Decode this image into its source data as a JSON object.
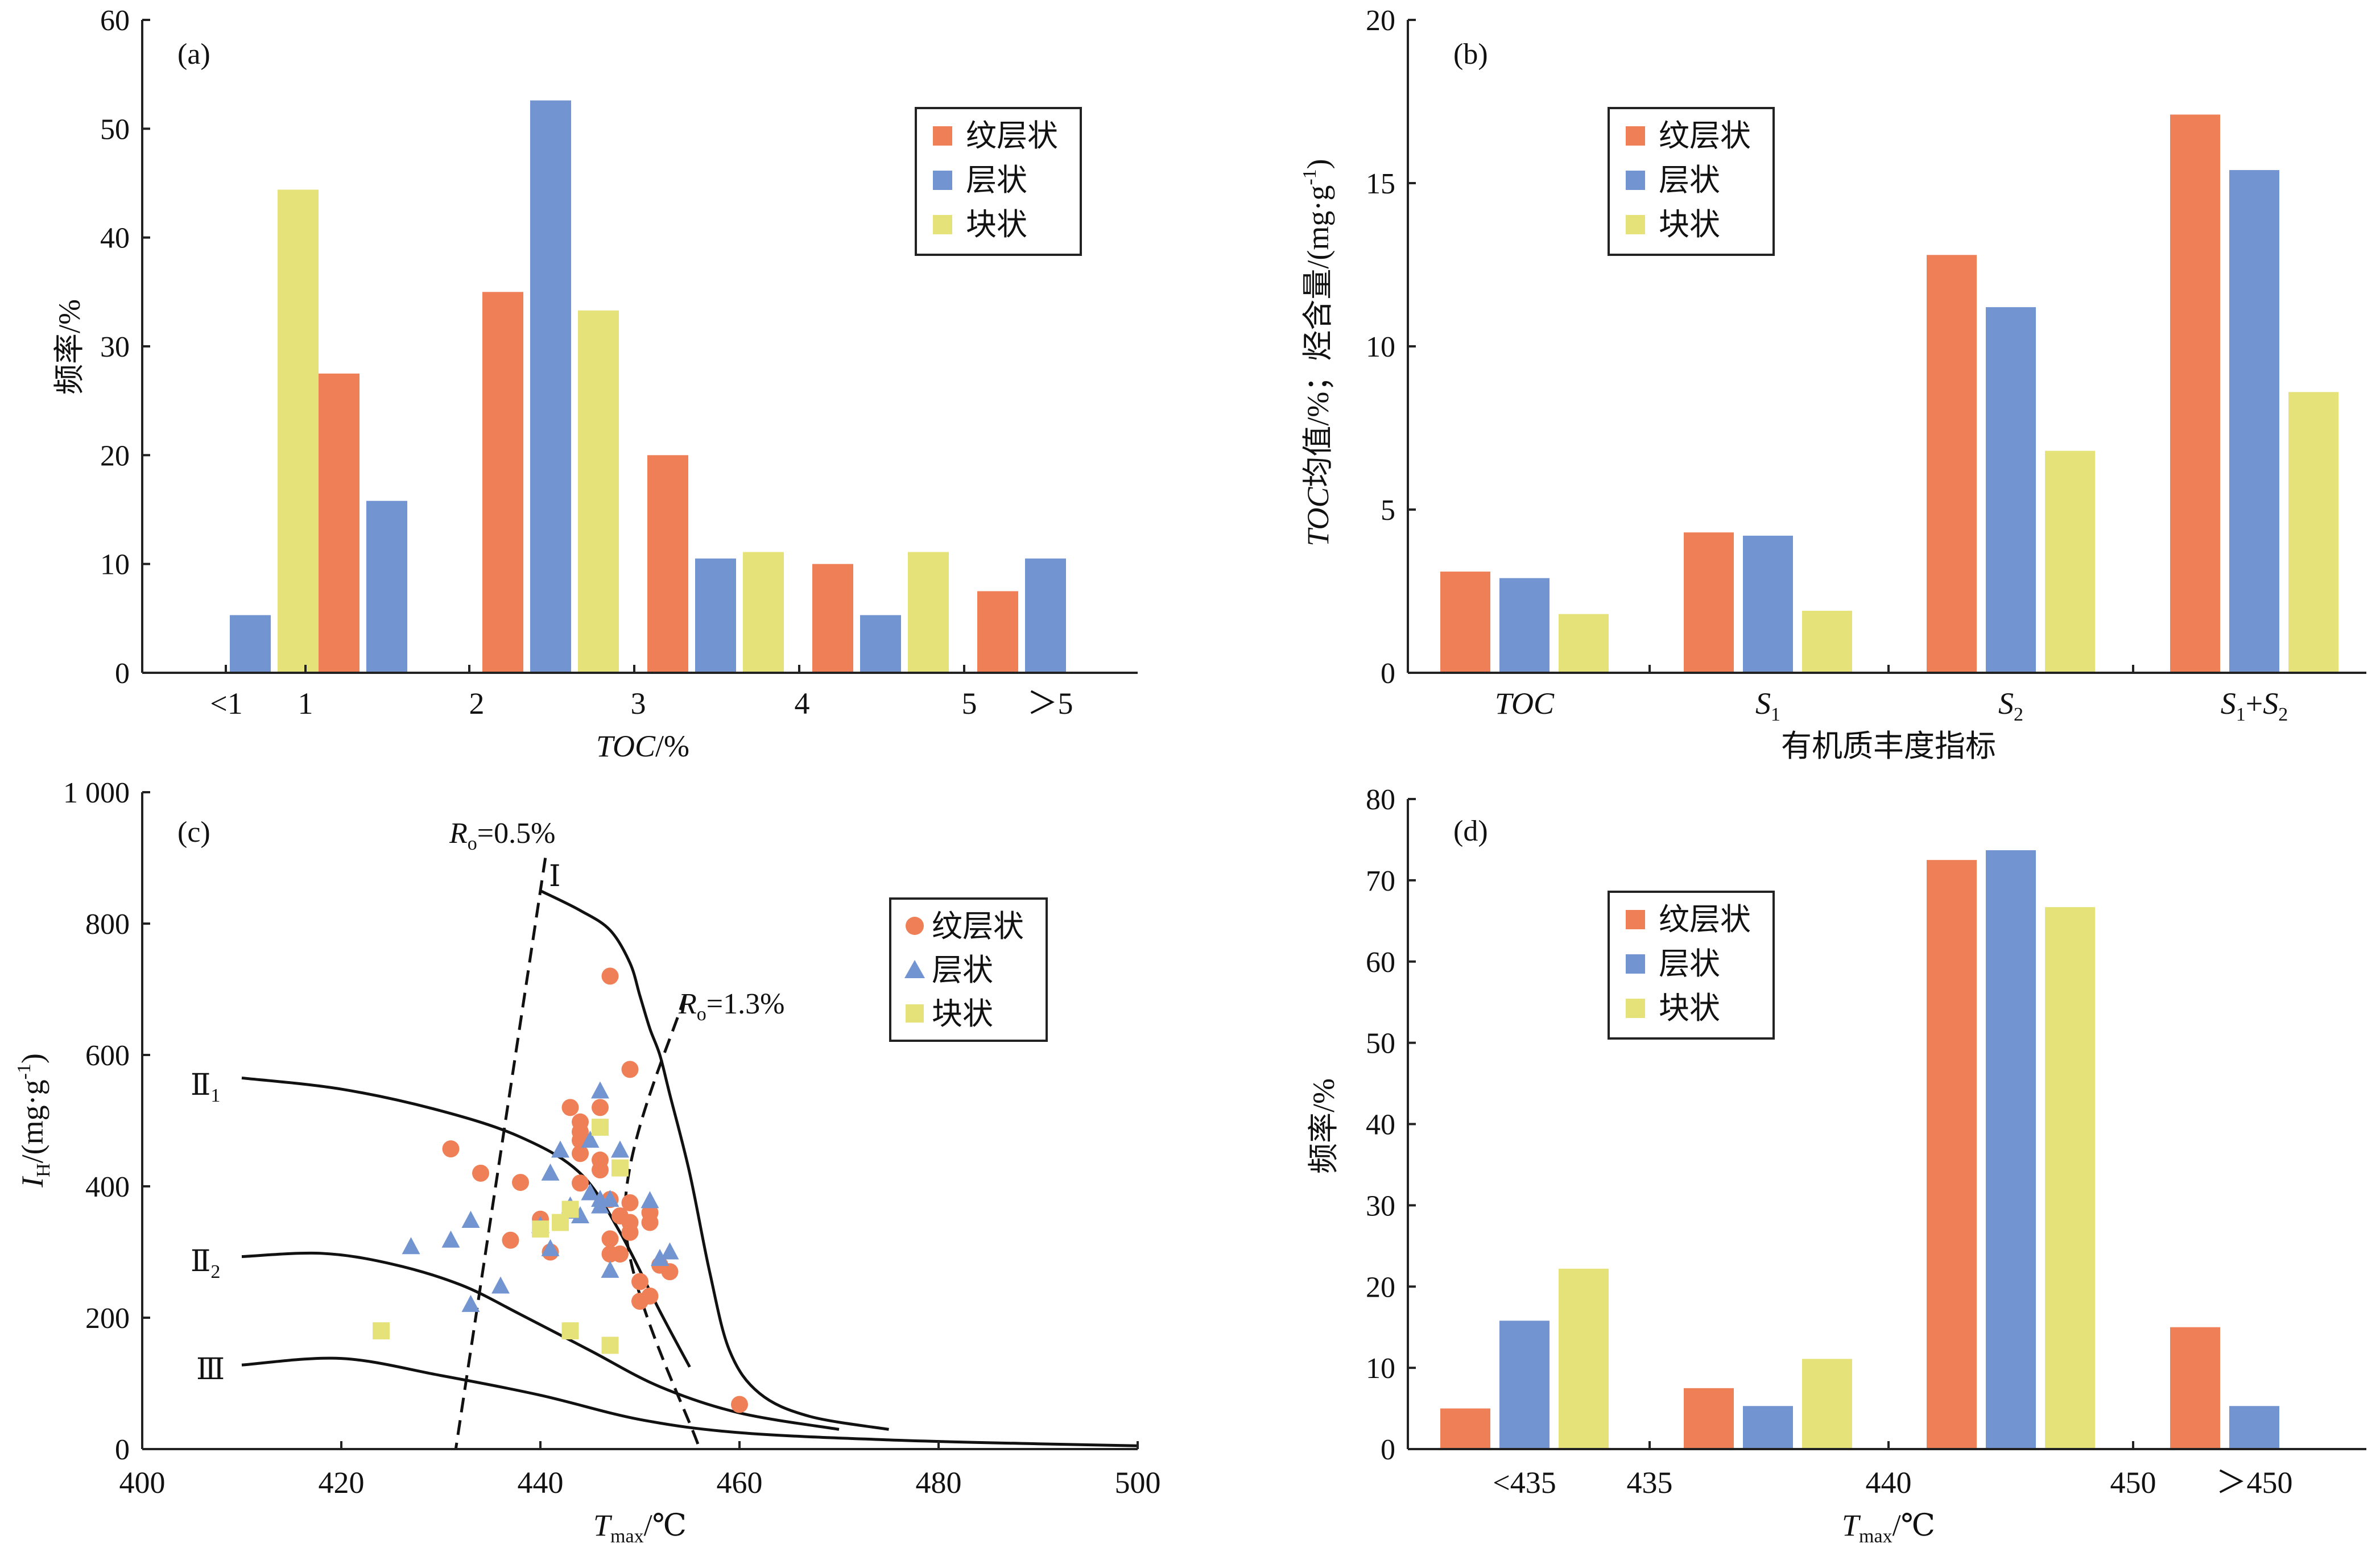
{
  "colors": {
    "laminated": "#EF7F56",
    "layered": "#7294D0",
    "massive": "#E6E27A"
  },
  "chart_data": [
    {
      "id": "a",
      "type": "bar",
      "panel_label": "(a)",
      "xlabel_italic": "TOC",
      "xlabel_rest": "/%",
      "ylabel": "频率/%",
      "ylim": [
        0,
        60
      ],
      "yticks": [
        "0",
        "10",
        "20",
        "30",
        "40",
        "50",
        "60"
      ],
      "ytick_values": [
        0,
        10,
        20,
        30,
        40,
        50,
        60
      ],
      "categories": [
        "<1",
        "1-2",
        "2-3",
        "3-4",
        "4-5",
        ">5"
      ],
      "xtick_labels": [
        "<1",
        "1",
        "2",
        "3",
        "4",
        "5",
        "＞5"
      ],
      "series": [
        {
          "name": "纹层状",
          "values": [
            0,
            27.5,
            35,
            20,
            10,
            7.5
          ]
        },
        {
          "name": "层状",
          "values": [
            5.3,
            15.8,
            52.6,
            10.5,
            5.3,
            10.5
          ]
        },
        {
          "name": "块状",
          "values": [
            44.4,
            0,
            33.3,
            11.1,
            11.1,
            0
          ]
        }
      ],
      "legend": "top-right"
    },
    {
      "id": "b",
      "type": "bar",
      "panel_label": "(b)",
      "xlabel": "有机质丰度指标",
      "ylabel_italic": "TOC",
      "ylabel_rest": "均值/%；烃含量/(mg·g",
      "ylabel_sup": "-1",
      "ylabel_end": ")",
      "ylim": [
        0,
        20
      ],
      "yticks": [
        "0",
        "5",
        "10",
        "15",
        "20"
      ],
      "ytick_values": [
        0,
        5,
        10,
        15,
        20
      ],
      "categories": [
        "TOC",
        "S1",
        "S2",
        "S1+S2"
      ],
      "series": [
        {
          "name": "纹层状",
          "values": [
            3.1,
            4.3,
            12.8,
            17.1
          ]
        },
        {
          "name": "层状",
          "values": [
            2.9,
            4.2,
            11.2,
            15.4
          ]
        },
        {
          "name": "块状",
          "values": [
            1.8,
            1.9,
            6.8,
            8.6
          ]
        }
      ],
      "legend": "top-left"
    },
    {
      "id": "c",
      "type": "scatter",
      "panel_label": "(c)",
      "xlabel_main": "T",
      "xlabel_sub": "max",
      "xlabel_rest": "/℃",
      "ylabel_main": "I",
      "ylabel_sub": "H",
      "ylabel_rest": "/(mg·g",
      "ylabel_sup": "-1",
      "ylabel_end": ")",
      "xlim": [
        400,
        500
      ],
      "ylim": [
        0,
        1000
      ],
      "xticks": [
        "400",
        "420",
        "440",
        "460",
        "480",
        "500"
      ],
      "xtick_values": [
        400,
        420,
        440,
        460,
        480,
        500
      ],
      "yticks": [
        "0",
        "200",
        "400",
        "600",
        "800",
        "1 000"
      ],
      "ytick_values": [
        0,
        200,
        400,
        600,
        800,
        1000
      ],
      "type_curves": [
        {
          "label": "Ⅰ",
          "x": [
            440,
            444,
            447,
            449,
            450,
            451,
            452,
            453,
            455,
            457,
            459,
            462,
            467,
            475
          ],
          "y": [
            850,
            820,
            790,
            740,
            690,
            640,
            600,
            540,
            420,
            270,
            150,
            85,
            50,
            30
          ]
        },
        {
          "label": "Ⅱ1",
          "x": [
            410,
            420,
            430,
            438,
            444,
            448,
            452,
            455
          ],
          "y": [
            565,
            548,
            515,
            475,
            420,
            330,
            210,
            125
          ]
        },
        {
          "label": "Ⅱ2",
          "x": [
            410,
            418,
            425,
            432,
            438,
            445,
            452,
            460,
            470
          ],
          "y": [
            293,
            298,
            282,
            250,
            205,
            150,
            95,
            55,
            30
          ]
        },
        {
          "label": "Ⅲ",
          "x": [
            410,
            420,
            430,
            440,
            450,
            460,
            475,
            490,
            500
          ],
          "y": [
            128,
            138,
            112,
            82,
            45,
            25,
            14,
            8,
            5
          ]
        }
      ],
      "type_curve_labels": {
        "I": "Ⅰ",
        "II": "Ⅱ",
        "II1_sub": "1",
        "II2_sub": "2",
        "III": "Ⅲ"
      },
      "ro_lines": [
        {
          "label_main": "R",
          "label_sub": "o",
          "label_rest": "=0.5%",
          "x": [
            440.5,
            431.5
          ],
          "y": [
            900,
            0
          ]
        },
        {
          "label_main": "R",
          "label_sub": "o",
          "label_rest": "=1.3%",
          "x": [
            454.5,
            448.5,
            456
          ],
          "y": [
            690,
            350,
            0
          ]
        }
      ],
      "series": [
        {
          "name": "纹层状",
          "marker": "circle",
          "points": [
            [
              431,
              457
            ],
            [
              434,
              420
            ],
            [
              437,
              318
            ],
            [
              438,
              406
            ],
            [
              440,
              350
            ],
            [
              441,
              300
            ],
            [
              443,
              520
            ],
            [
              444,
              498
            ],
            [
              444,
              483
            ],
            [
              444,
              470
            ],
            [
              444,
              450
            ],
            [
              444,
              405
            ],
            [
              446,
              520
            ],
            [
              446,
              440
            ],
            [
              446,
              425
            ],
            [
              447,
              720
            ],
            [
              447,
              380
            ],
            [
              447,
              320
            ],
            [
              447,
              297
            ],
            [
              448,
              297
            ],
            [
              448,
              355
            ],
            [
              449,
              578
            ],
            [
              449,
              375
            ],
            [
              449,
              345
            ],
            [
              449,
              330
            ],
            [
              450,
              255
            ],
            [
              450,
              225
            ],
            [
              451,
              360
            ],
            [
              451,
              345
            ],
            [
              451,
              233
            ],
            [
              452,
              280
            ],
            [
              453,
              270
            ],
            [
              460,
              68
            ]
          ]
        },
        {
          "name": "层状",
          "marker": "triangle",
          "points": [
            [
              427,
              308
            ],
            [
              431,
              318
            ],
            [
              433,
              348
            ],
            [
              433,
              220
            ],
            [
              436,
              248
            ],
            [
              440,
              340
            ],
            [
              441,
              420
            ],
            [
              441,
              305
            ],
            [
              442,
              455
            ],
            [
              443,
              370
            ],
            [
              443,
              362
            ],
            [
              444,
              355
            ],
            [
              445,
              470
            ],
            [
              445,
              390
            ],
            [
              446,
              545
            ],
            [
              446,
              380
            ],
            [
              446,
              370
            ],
            [
              447,
              380
            ],
            [
              447,
              272
            ],
            [
              448,
              455
            ],
            [
              451,
              378
            ],
            [
              452,
              290
            ],
            [
              453,
              300
            ]
          ]
        },
        {
          "name": "块状",
          "marker": "square",
          "points": [
            [
              424,
              180
            ],
            [
              440,
              335
            ],
            [
              442,
              345
            ],
            [
              443,
              365
            ],
            [
              443,
              180
            ],
            [
              446,
              490
            ],
            [
              447,
              158
            ],
            [
              448,
              428
            ]
          ]
        }
      ],
      "legend": "top-right"
    },
    {
      "id": "d",
      "type": "bar",
      "panel_label": "(d)",
      "xlabel_main": "T",
      "xlabel_sub": "max",
      "xlabel_rest": "/℃",
      "ylabel": "频率/%",
      "ylim": [
        0,
        80
      ],
      "yticks": [
        "0",
        "10",
        "20",
        "30",
        "40",
        "50",
        "60",
        "70",
        "80"
      ],
      "ytick_values": [
        0,
        10,
        20,
        30,
        40,
        50,
        60,
        70,
        80
      ],
      "categories": [
        "<435",
        "435-440",
        "440-450",
        ">450"
      ],
      "xtick_labels": [
        "<435",
        "435",
        "440",
        "450",
        "＞450"
      ],
      "series": [
        {
          "name": "纹层状",
          "values": [
            5,
            7.5,
            72.5,
            15
          ]
        },
        {
          "name": "层状",
          "values": [
            15.8,
            5.3,
            73.7,
            5.3
          ]
        },
        {
          "name": "块状",
          "values": [
            22.2,
            11.1,
            66.7,
            0
          ]
        }
      ],
      "legend": "top-left"
    }
  ]
}
